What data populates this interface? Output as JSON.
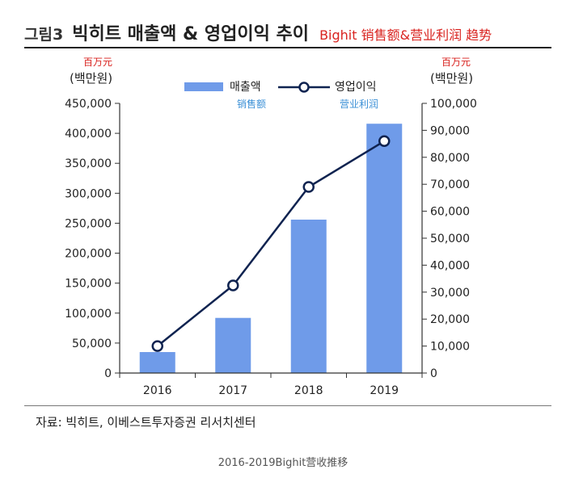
{
  "header": {
    "prefix": "그림3",
    "title": "빅히트 매출액 & 영업이익 추이",
    "title_cn": "Bighit 销售额&营业利润 趋势"
  },
  "units": {
    "left_cn": "百万元",
    "left_ko": "(백만원)",
    "right_cn": "百万元",
    "right_ko": "(백만원)"
  },
  "legend": {
    "bar_label": "매출액",
    "bar_label_cn": "销售额",
    "line_label": "영업이익",
    "line_label_cn": "营业利润"
  },
  "colors": {
    "bar": "#6f9be9",
    "line": "#0f2350",
    "marker_fill": "#ffffff",
    "title_cn": "#d9231f",
    "legend_cn": "#3a8fd6"
  },
  "source": "자료: 빅히트, 이베스트투자증권 리서치센터",
  "caption": "2016-2019Bighit营收推移",
  "chart_data": {
    "type": "bar",
    "categories": [
      "2016",
      "2017",
      "2018",
      "2019"
    ],
    "series": [
      {
        "name": "매출액",
        "type": "bar",
        "axis": "left",
        "values": [
          35000,
          92000,
          256000,
          416000
        ]
      },
      {
        "name": "영업이익",
        "type": "line",
        "axis": "right",
        "values": [
          10000,
          32500,
          69000,
          86000
        ]
      }
    ],
    "ylim_left": [
      0,
      450000
    ],
    "ylim_right": [
      0,
      100000
    ],
    "yticks_left": [
      "0",
      "50,000",
      "100,000",
      "150,000",
      "200,000",
      "250,000",
      "300,000",
      "350,000",
      "400,000",
      "450,000"
    ],
    "yticks_right": [
      "0",
      "10,000",
      "20,000",
      "30,000",
      "40,000",
      "50,000",
      "60,000",
      "70,000",
      "80,000",
      "90,000",
      "100,000"
    ],
    "title": "빅히트 매출액 & 영업이익 추이",
    "legend_position": "top-center",
    "grid": false
  }
}
